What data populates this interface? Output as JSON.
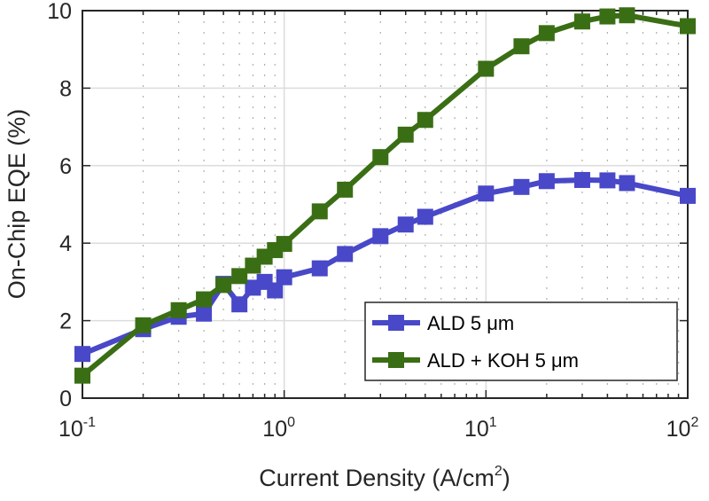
{
  "chart_data": {
    "type": "line",
    "xlabel": "Current Density (A/cm",
    "xlabel_sup": "2",
    "xlabel_end": ")",
    "ylabel": "On-Chip EQE (%)",
    "xscale": "log",
    "xlim": [
      0.1,
      100
    ],
    "ylim": [
      0,
      10
    ],
    "grid": true,
    "minor_grid": "dotted",
    "legend_placement": "bottom-right",
    "x_ticks": [
      {
        "base": "10",
        "exp": "-1",
        "value": 0.1
      },
      {
        "base": "10",
        "exp": "0",
        "value": 1
      },
      {
        "base": "10",
        "exp": "1",
        "value": 10
      },
      {
        "base": "10",
        "exp": "2",
        "value": 100
      }
    ],
    "y_ticks": [
      "0",
      "2",
      "4",
      "6",
      "8",
      "10"
    ],
    "x": [
      0.1,
      0.2,
      0.3,
      0.4,
      0.5,
      0.6,
      0.7,
      0.8,
      0.9,
      1,
      1.5,
      2,
      3,
      4,
      5,
      10,
      15,
      20,
      30,
      40,
      50,
      100
    ],
    "series": [
      {
        "name": "ALD 5 μm",
        "color": "#4848C8",
        "values": [
          1.14,
          1.78,
          2.1,
          2.18,
          2.95,
          2.42,
          2.85,
          3.0,
          2.78,
          3.12,
          3.35,
          3.72,
          4.18,
          4.48,
          4.68,
          5.28,
          5.45,
          5.6,
          5.63,
          5.62,
          5.55,
          5.22
        ]
      },
      {
        "name": "ALD + KOH 5 μm",
        "color": "#3A6E14",
        "values": [
          0.58,
          1.88,
          2.27,
          2.55,
          2.92,
          3.15,
          3.42,
          3.65,
          3.82,
          3.98,
          4.82,
          5.38,
          6.22,
          6.8,
          7.18,
          8.5,
          9.08,
          9.42,
          9.72,
          9.85,
          9.88,
          9.6
        ]
      }
    ]
  }
}
